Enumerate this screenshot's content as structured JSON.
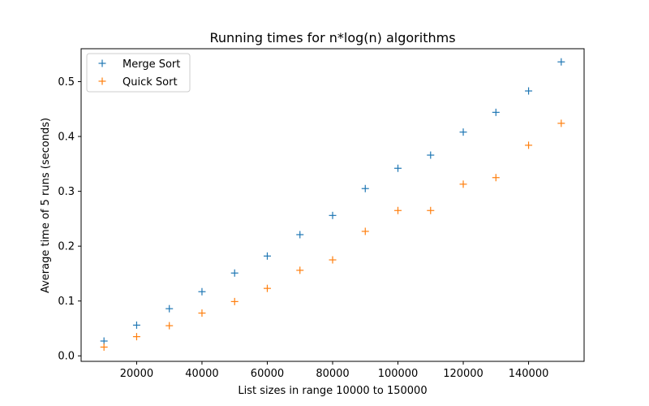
{
  "chart_data": {
    "type": "scatter",
    "title": "Running times for n*log(n) algorithms",
    "xlabel": "List sizes in range 10000 to 150000",
    "ylabel": "Average time of 5 runs (seconds)",
    "xlim": [
      3000,
      157000
    ],
    "ylim": [
      -0.01,
      0.56
    ],
    "xticks": [
      20000,
      40000,
      60000,
      80000,
      100000,
      120000,
      140000
    ],
    "yticks": [
      0.0,
      0.1,
      0.2,
      0.3,
      0.4,
      0.5
    ],
    "xtick_labels": [
      "20000",
      "40000",
      "60000",
      "80000",
      "100000",
      "120000",
      "140000"
    ],
    "ytick_labels": [
      "0.0",
      "0.1",
      "0.2",
      "0.3",
      "0.4",
      "0.5"
    ],
    "legend_position": "top-left",
    "grid": false,
    "marker": "+",
    "x": [
      10000,
      20000,
      30000,
      40000,
      50000,
      60000,
      70000,
      80000,
      90000,
      100000,
      110000,
      120000,
      130000,
      140000,
      150000
    ],
    "series": [
      {
        "name": "Merge Sort",
        "color": "#1f77b4",
        "values": [
          0.027,
          0.056,
          0.086,
          0.117,
          0.151,
          0.182,
          0.221,
          0.256,
          0.305,
          0.342,
          0.366,
          0.408,
          0.444,
          0.483,
          0.536
        ]
      },
      {
        "name": "Quick Sort",
        "color": "#ff7f0e",
        "values": [
          0.016,
          0.035,
          0.055,
          0.078,
          0.099,
          0.123,
          0.156,
          0.175,
          0.227,
          0.265,
          0.265,
          0.313,
          0.325,
          0.384,
          0.424
        ]
      }
    ]
  }
}
